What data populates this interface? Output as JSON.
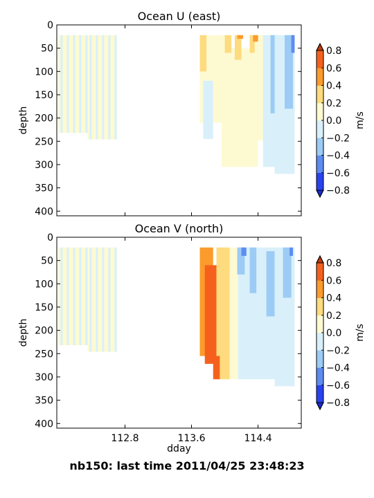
{
  "chart_data": [
    {
      "type": "heatmap",
      "title": "Ocean U (east)",
      "xlabel": "",
      "ylabel": "depth",
      "ylim": [
        410,
        0
      ],
      "yticks": [
        0,
        50,
        100,
        150,
        200,
        250,
        300,
        350,
        400
      ],
      "xlim": [
        111.98,
        114.92
      ],
      "xticks": [
        112.8,
        113.6,
        114.4
      ],
      "xtick_labels_shown": false,
      "colorbar": {
        "label": "m/s",
        "levels": [
          -0.8,
          -0.6,
          -0.4,
          -0.2,
          0.0,
          0.2,
          0.4,
          0.6,
          0.8
        ],
        "extend": "both"
      },
      "regions": [
        {
          "x0": 112.0,
          "x1": 112.35,
          "d0": 22,
          "d1": 232,
          "value": 0.0,
          "mixed": true
        },
        {
          "x0": 112.35,
          "x1": 112.7,
          "d0": 22,
          "d1": 246,
          "value": 0.0,
          "mixed": true
        },
        {
          "x0": 114.3,
          "x1": 114.66,
          "d0": 22,
          "d1": 248,
          "value": 0.1
        },
        {
          "x0": 113.7,
          "x1": 114.0,
          "d0": 22,
          "d1": 210,
          "value": 0.1
        },
        {
          "x0": 113.96,
          "x1": 114.4,
          "d0": 50,
          "d1": 305,
          "value": 0.1
        },
        {
          "x0": 113.74,
          "x1": 113.86,
          "d0": 120,
          "d1": 245,
          "value": -0.1
        },
        {
          "x0": 113.7,
          "x1": 113.78,
          "d0": 22,
          "d1": 100,
          "value": 0.3
        },
        {
          "x0": 114.0,
          "x1": 114.08,
          "d0": 22,
          "d1": 60,
          "value": 0.3
        },
        {
          "x0": 114.12,
          "x1": 114.2,
          "d0": 22,
          "d1": 75,
          "value": 0.3
        },
        {
          "x0": 114.15,
          "x1": 114.22,
          "d0": 22,
          "d1": 30,
          "value": 0.5
        },
        {
          "x0": 114.3,
          "x1": 114.36,
          "d0": 22,
          "d1": 60,
          "value": 0.3
        },
        {
          "x0": 114.34,
          "x1": 114.4,
          "d0": 22,
          "d1": 36,
          "value": 0.5
        },
        {
          "x0": 114.46,
          "x1": 114.65,
          "d0": 22,
          "d1": 305,
          "value": -0.1
        },
        {
          "x0": 114.55,
          "x1": 114.63,
          "d0": 22,
          "d1": 190,
          "value": -0.3
        },
        {
          "x0": 114.6,
          "x1": 114.84,
          "d0": 22,
          "d1": 320,
          "value": -0.1
        },
        {
          "x0": 114.72,
          "x1": 114.82,
          "d0": 22,
          "d1": 180,
          "value": -0.3
        },
        {
          "x0": 114.8,
          "x1": 114.84,
          "d0": 22,
          "d1": 60,
          "value": -0.5
        }
      ]
    },
    {
      "type": "heatmap",
      "title": "Ocean V (north)",
      "xlabel": "dday",
      "ylabel": "depth",
      "ylim": [
        410,
        0
      ],
      "yticks": [
        0,
        50,
        100,
        150,
        200,
        250,
        300,
        350,
        400
      ],
      "xlim": [
        111.98,
        114.92
      ],
      "xticks": [
        112.8,
        113.6,
        114.4
      ],
      "xtick_labels": [
        "112.8",
        "113.6",
        "114.4"
      ],
      "colorbar": {
        "label": "m/s",
        "levels": [
          -0.8,
          -0.6,
          -0.4,
          -0.2,
          0.0,
          0.2,
          0.4,
          0.6,
          0.8
        ],
        "extend": "both"
      },
      "regions": [
        {
          "x0": 112.0,
          "x1": 112.35,
          "d0": 22,
          "d1": 232,
          "value": 0.0,
          "mixed": true
        },
        {
          "x0": 112.35,
          "x1": 112.7,
          "d0": 22,
          "d1": 246,
          "value": 0.0,
          "mixed": true
        },
        {
          "x0": 113.7,
          "x1": 113.86,
          "d0": 22,
          "d1": 255,
          "value": 0.5
        },
        {
          "x0": 113.76,
          "x1": 113.9,
          "d0": 60,
          "d1": 272,
          "value": 0.7
        },
        {
          "x0": 113.9,
          "x1": 114.06,
          "d0": 22,
          "d1": 305,
          "value": 0.3
        },
        {
          "x0": 113.86,
          "x1": 113.94,
          "d0": 255,
          "d1": 305,
          "value": 0.7
        },
        {
          "x0": 114.06,
          "x1": 114.16,
          "d0": 22,
          "d1": 305,
          "value": 0.1
        },
        {
          "x0": 114.16,
          "x1": 114.66,
          "d0": 22,
          "d1": 305,
          "value": -0.1
        },
        {
          "x0": 114.15,
          "x1": 114.24,
          "d0": 22,
          "d1": 80,
          "value": -0.3
        },
        {
          "x0": 114.2,
          "x1": 114.26,
          "d0": 22,
          "d1": 40,
          "value": -0.5
        },
        {
          "x0": 114.3,
          "x1": 114.38,
          "d0": 22,
          "d1": 120,
          "value": -0.3
        },
        {
          "x0": 114.5,
          "x1": 114.6,
          "d0": 30,
          "d1": 170,
          "value": -0.3
        },
        {
          "x0": 114.6,
          "x1": 114.84,
          "d0": 22,
          "d1": 320,
          "value": -0.1
        },
        {
          "x0": 114.7,
          "x1": 114.8,
          "d0": 22,
          "d1": 130,
          "value": -0.3
        },
        {
          "x0": 114.78,
          "x1": 114.82,
          "d0": 22,
          "d1": 40,
          "value": -0.5
        }
      ]
    }
  ],
  "footer_text": "nb150: last time 2011/04/25 23:48:23",
  "palette": {
    "-0.8": "#2942f0",
    "-0.6": "#5d8cf2",
    "-0.4": "#9ccbf5",
    "-0.2": "#d9f0fa",
    "0.0": "#fdfad2",
    "0.2": "#fddb7e",
    "0.4": "#fb9b2c",
    "0.6": "#f5611d"
  }
}
